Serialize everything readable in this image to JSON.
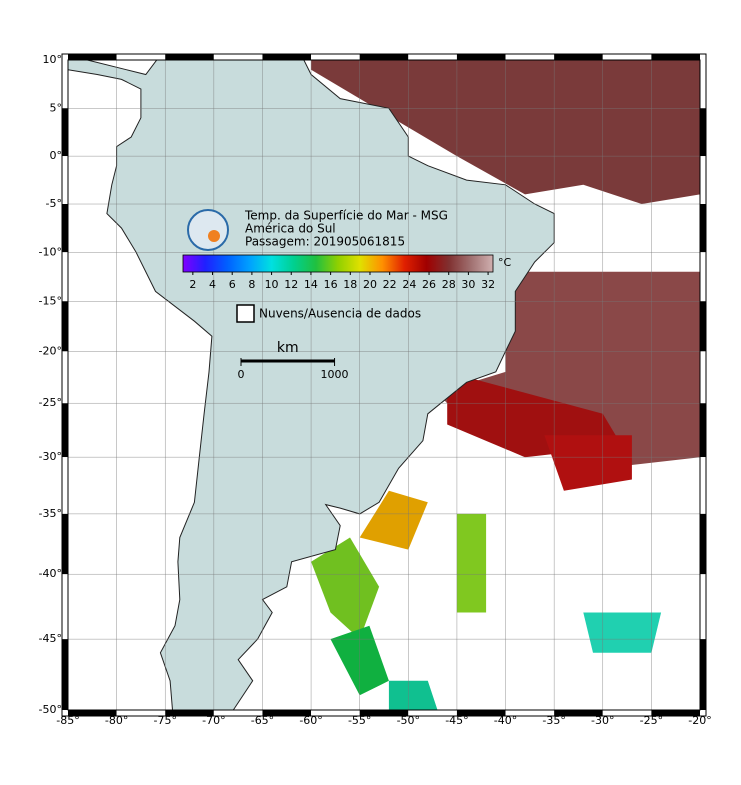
{
  "title": {
    "lines": [
      "Temp. da Superfície do Mar - MSG",
      "América do Sul",
      "Passagem: 201905061815"
    ]
  },
  "map": {
    "projection": "mercator",
    "lonlim": [
      -85,
      -20
    ],
    "latlim": [
      -50,
      10
    ],
    "grid": true,
    "lonticks": [
      {
        "value": -85,
        "label": "-85°"
      },
      {
        "value": -80,
        "label": "-80°"
      },
      {
        "value": -75,
        "label": "-75°"
      },
      {
        "value": -70,
        "label": "-70°"
      },
      {
        "value": -65,
        "label": "-65°"
      },
      {
        "value": -60,
        "label": "-60°"
      },
      {
        "value": -55,
        "label": "-55°"
      },
      {
        "value": -50,
        "label": "-50°"
      },
      {
        "value": -45,
        "label": "-45°"
      },
      {
        "value": -40,
        "label": "-40°"
      },
      {
        "value": -35,
        "label": "-35°"
      },
      {
        "value": -30,
        "label": "-30°"
      },
      {
        "value": -25,
        "label": "-25°"
      },
      {
        "value": -20,
        "label": "-20°"
      }
    ],
    "latticks": [
      {
        "value": 10,
        "label": "10°"
      },
      {
        "value": 5,
        "label": "5°"
      },
      {
        "value": 0,
        "label": "0°"
      },
      {
        "value": -5,
        "label": "-5°"
      },
      {
        "value": -10,
        "label": "-10°"
      },
      {
        "value": -15,
        "label": "-15°"
      },
      {
        "value": -20,
        "label": "-20°"
      },
      {
        "value": -25,
        "label": "-25°"
      },
      {
        "value": -30,
        "label": "-30°"
      },
      {
        "value": -35,
        "label": "-35°"
      },
      {
        "value": -40,
        "label": "-40°"
      },
      {
        "value": -45,
        "label": "-45°"
      },
      {
        "value": -50,
        "label": "-50°"
      }
    ]
  },
  "colorbar": {
    "lim": [
      1,
      32.5
    ],
    "ticks": [
      2,
      4,
      6,
      8,
      10,
      12,
      14,
      16,
      18,
      20,
      22,
      24,
      26,
      28,
      30,
      32
    ],
    "unit": "°C",
    "colors": [
      "#8000ff",
      "#2020ff",
      "#0060ff",
      "#00a0ff",
      "#00e0e0",
      "#00d090",
      "#20c040",
      "#90d000",
      "#e0e000",
      "#ff9000",
      "#e02000",
      "#a00000",
      "#803030",
      "#a07070",
      "#d0b0b0"
    ]
  },
  "legend": {
    "label": "Nuvens/Ausencia de dados"
  },
  "scale": {
    "unit": "km",
    "ticks": [
      0,
      1000
    ]
  }
}
